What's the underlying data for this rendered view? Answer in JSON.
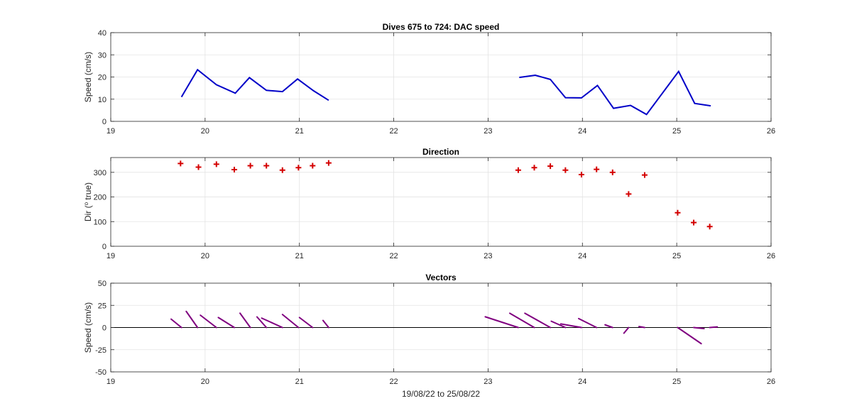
{
  "chart_data": [
    {
      "type": "line",
      "title": "Dives 675 to 724: DAC speed",
      "ylabel": "Speed (cm/s)",
      "xlabel": "",
      "xlim": [
        19,
        26
      ],
      "ylim": [
        0,
        40
      ],
      "xticks": [
        19,
        20,
        21,
        22,
        23,
        24,
        25,
        26
      ],
      "yticks": [
        0,
        10,
        20,
        30,
        40
      ],
      "grid": true,
      "color": "#0000c8",
      "series": [
        {
          "x": [
            19.75,
            19.92,
            20.12,
            20.32,
            20.47,
            20.65,
            20.82,
            20.98,
            21.15,
            21.31
          ],
          "values": [
            11,
            23.3,
            16.5,
            12.7,
            19.7,
            14,
            13.4,
            19.1,
            13.8,
            9.5
          ]
        },
        {
          "x": [
            23.33,
            23.5,
            23.66,
            23.82,
            23.99,
            24.16,
            24.33,
            24.51,
            24.68,
            25.02,
            25.19,
            25.36
          ],
          "values": [
            19.8,
            20.8,
            18.9,
            10.7,
            10.6,
            16.2,
            5.9,
            7.2,
            3.1,
            22.5,
            8.1,
            7
          ]
        }
      ]
    },
    {
      "type": "scatter",
      "title": "Direction",
      "ylabel_prefix": "Dir (",
      "ylabel_sup": "o",
      "ylabel_suffix": " true)",
      "xlabel": "",
      "xlim": [
        19,
        26
      ],
      "ylim": [
        0,
        360
      ],
      "xticks": [
        19,
        20,
        21,
        22,
        23,
        24,
        25,
        26
      ],
      "yticks": [
        0,
        100,
        200,
        300
      ],
      "grid": true,
      "color": "#d40000",
      "marker": "+",
      "x": [
        19.74,
        19.93,
        20.12,
        20.31,
        20.48,
        20.65,
        20.82,
        20.99,
        21.14,
        21.31,
        23.32,
        23.49,
        23.66,
        23.82,
        23.99,
        24.15,
        24.32,
        24.49,
        24.66,
        25.01,
        25.18,
        25.35
      ],
      "values": [
        336,
        321,
        333,
        311,
        327,
        327,
        309,
        319,
        327,
        338,
        309,
        319,
        325,
        309,
        291,
        312,
        300,
        212,
        289,
        136,
        96,
        80
      ]
    },
    {
      "type": "vector",
      "title": "Vectors",
      "ylabel": "Speed (cm/s)",
      "xlabel": "19/08/22 to 25/08/22",
      "xlim": [
        19,
        26
      ],
      "ylim": [
        -50,
        50
      ],
      "xticks": [
        19,
        20,
        21,
        22,
        23,
        24,
        25,
        26
      ],
      "yticks": [
        -50,
        -25,
        0,
        25,
        50
      ],
      "grid": true,
      "color": "#800080",
      "zero_line": true,
      "x": [
        19.75,
        19.92,
        20.12,
        20.31,
        20.48,
        20.65,
        20.82,
        20.99,
        21.14,
        21.31,
        23.32,
        23.49,
        23.66,
        23.82,
        23.99,
        24.15,
        24.32,
        24.49,
        24.66,
        25.01,
        25.18,
        25.35
      ],
      "dx": [
        -0.11,
        -0.12,
        -0.17,
        -0.17,
        -0.11,
        -0.1,
        -0.22,
        -0.17,
        -0.14,
        -0.06,
        -0.35,
        -0.26,
        -0.27,
        -0.15,
        -0.22,
        -0.19,
        -0.08,
        -0.05,
        -0.06,
        0.25,
        0.11,
        0.08
      ],
      "dy": [
        9.5,
        18.2,
        13.9,
        11.3,
        16.2,
        12,
        10.6,
        14.7,
        11.3,
        8,
        12.1,
        16.1,
        16.1,
        7.1,
        4.1,
        10.1,
        3.1,
        -6.4,
        1.1,
        -18.2,
        -1.2,
        0.7
      ]
    }
  ]
}
